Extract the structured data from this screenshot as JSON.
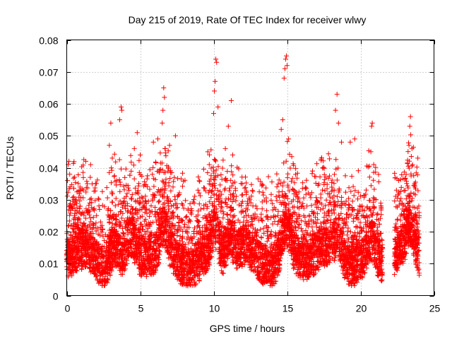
{
  "chart_data": {
    "type": "scatter",
    "title": "Day 215 of 2019, Rate Of TEC Index for receiver wlwy",
    "xlabel": "GPS time / hours",
    "ylabel": "ROTI / TECUs",
    "xlim": [
      0,
      25
    ],
    "ylim": [
      0,
      0.08
    ],
    "xticks": [
      0,
      5,
      10,
      15,
      20,
      25
    ],
    "xtick_labels": [
      "0",
      "5",
      "10",
      "15",
      "20",
      "25"
    ],
    "yticks": [
      0,
      0.01,
      0.02,
      0.03,
      0.04,
      0.05,
      0.06,
      0.07,
      0.08
    ],
    "ytick_labels": [
      "0",
      "0.01",
      "0.02",
      "0.03",
      "0.04",
      "0.05",
      "0.06",
      "0.07",
      "0.08"
    ],
    "grid": true,
    "marker": "+",
    "color": "#ff0000",
    "data_gap_hours": [
      21.5,
      22.3
    ],
    "series": [
      {
        "name": "ROTI",
        "points": [
          [
            0.05,
            0.036
          ],
          [
            0.1,
            0.041
          ],
          [
            0.15,
            0.042
          ],
          [
            0.2,
            0.038
          ],
          [
            0.3,
            0.022
          ],
          [
            1.3,
            0.042
          ],
          [
            1.6,
            0.037
          ],
          [
            2.9,
            0.047
          ],
          [
            3.0,
            0.054
          ],
          [
            3.1,
            0.043
          ],
          [
            3.6,
            0.055
          ],
          [
            3.7,
            0.059
          ],
          [
            3.75,
            0.058
          ],
          [
            4.6,
            0.046
          ],
          [
            4.8,
            0.051
          ],
          [
            5.0,
            0.044
          ],
          [
            5.9,
            0.048
          ],
          [
            6.2,
            0.049
          ],
          [
            6.5,
            0.054
          ],
          [
            6.55,
            0.058
          ],
          [
            6.6,
            0.065
          ],
          [
            6.65,
            0.062
          ],
          [
            6.7,
            0.046
          ],
          [
            7.0,
            0.047
          ],
          [
            7.4,
            0.05
          ],
          [
            9.6,
            0.045
          ],
          [
            9.7,
            0.041
          ],
          [
            10.0,
            0.057
          ],
          [
            10.05,
            0.064
          ],
          [
            10.1,
            0.067
          ],
          [
            10.15,
            0.074
          ],
          [
            10.2,
            0.073
          ],
          [
            10.3,
            0.059
          ],
          [
            10.8,
            0.046
          ],
          [
            11.0,
            0.053
          ],
          [
            11.2,
            0.061
          ],
          [
            11.3,
            0.044
          ],
          [
            14.6,
            0.052
          ],
          [
            14.7,
            0.055
          ],
          [
            14.8,
            0.068
          ],
          [
            14.85,
            0.071
          ],
          [
            14.9,
            0.074
          ],
          [
            14.95,
            0.075
          ],
          [
            15.0,
            0.072
          ],
          [
            15.1,
            0.049
          ],
          [
            18.3,
            0.058
          ],
          [
            18.4,
            0.063
          ],
          [
            18.5,
            0.054
          ],
          [
            18.7,
            0.048
          ],
          [
            19.3,
            0.048
          ],
          [
            19.6,
            0.049
          ],
          [
            20.7,
            0.045
          ],
          [
            20.75,
            0.053
          ],
          [
            20.8,
            0.054
          ],
          [
            20.9,
            0.041
          ],
          [
            23.3,
            0.047
          ],
          [
            23.35,
            0.053
          ],
          [
            23.4,
            0.056
          ],
          [
            23.5,
            0.046
          ],
          [
            23.9,
            0.043
          ]
        ]
      }
    ]
  }
}
